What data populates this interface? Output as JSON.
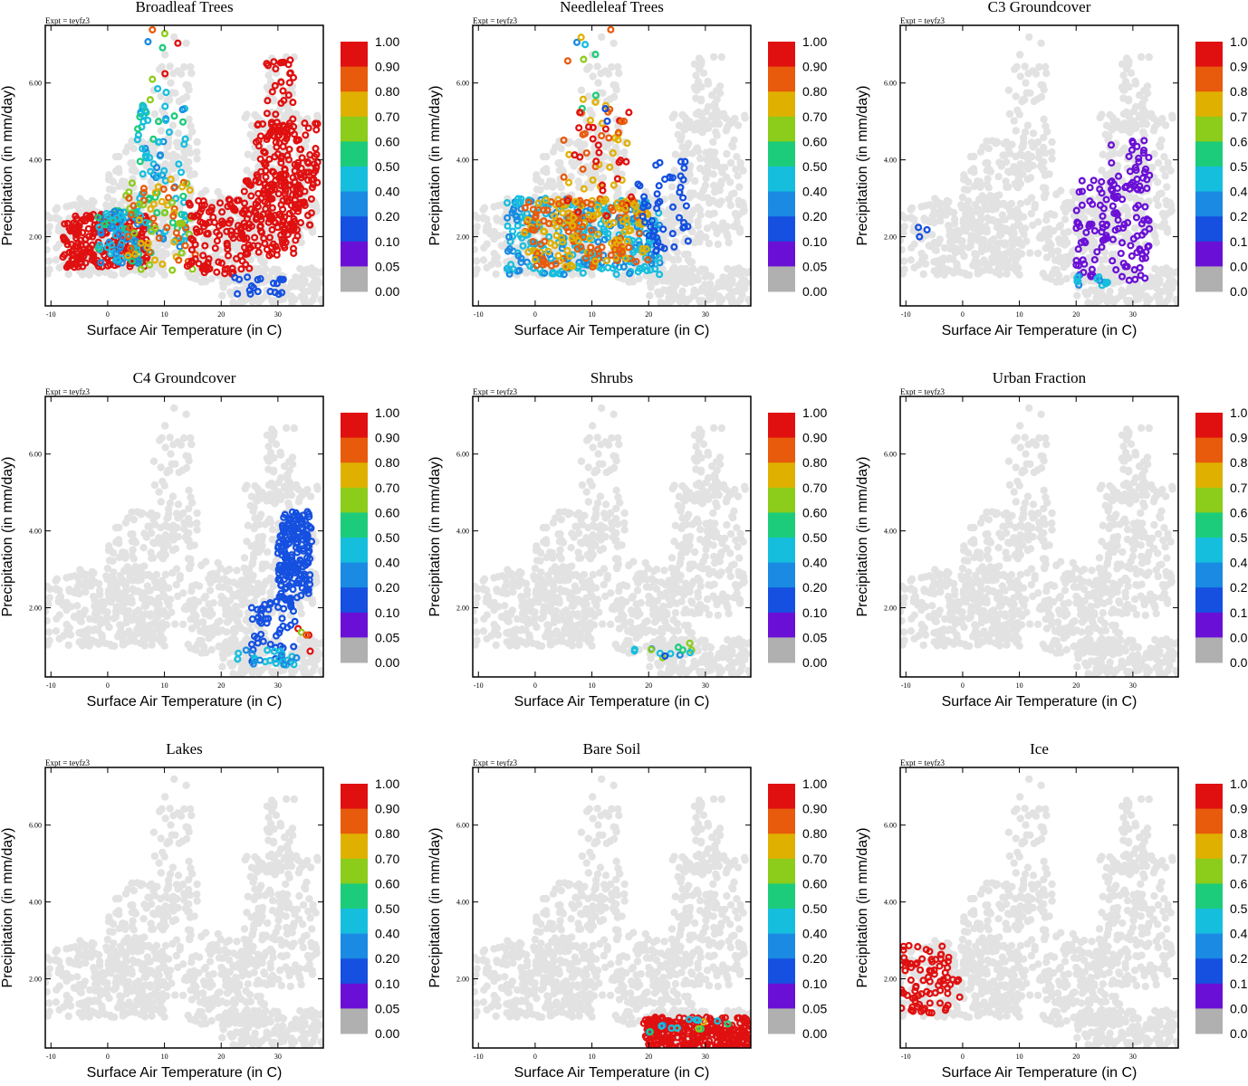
{
  "chart_data": {
    "type": "scatter",
    "experiment_label": "Expt = teyfz3",
    "xlabel": "Surface Air Temperature (in C)",
    "ylabel": "Precipitation (in mm/day)",
    "xlim": [
      -11,
      38
    ],
    "ylim": [
      0.2,
      7.5
    ],
    "x_ticks": [
      "-10",
      "0",
      "10",
      "20",
      "30"
    ],
    "x_tick_values": [
      -10,
      0,
      10,
      20,
      30
    ],
    "y_ticks": [
      "2.00",
      "4.00",
      "6.00"
    ],
    "y_tick_values": [
      2,
      4,
      6
    ],
    "colorbar_labels": [
      "1.00",
      "0.90",
      "0.80",
      "0.70",
      "0.60",
      "0.50",
      "0.40",
      "0.20",
      "0.10",
      "0.05",
      "0.00"
    ],
    "colorbar_colors": [
      "#e01010",
      "#e85a0c",
      "#e0b000",
      "#8ccc1a",
      "#1ccc7a",
      "#16bede",
      "#1a8ae2",
      "#1550e0",
      "#6a10d6",
      "#b0b0b0"
    ],
    "background_color": "#e2e2e2",
    "panels": [
      {
        "title": "Broadleaf Trees",
        "clusters": [
          {
            "x": [
              -8,
              7
            ],
            "y": [
              1.2,
              2.6
            ],
            "n": 220,
            "v": [
              0.8,
              0.9
            ]
          },
          {
            "x": [
              -2,
              6
            ],
            "y": [
              1.3,
              2.7
            ],
            "n": 80,
            "v": [
              0.1,
              0.5
            ]
          },
          {
            "x": [
              5,
              14
            ],
            "y": [
              1.5,
              5.5
            ],
            "n": 90,
            "v": [
              0.1,
              0.5
            ]
          },
          {
            "x": [
              3,
              16
            ],
            "y": [
              1.0,
              3.5
            ],
            "n": 70,
            "v": [
              0.5,
              0.8
            ]
          },
          {
            "x": [
              14,
              25
            ],
            "y": [
              1.0,
              3.0
            ],
            "n": 120,
            "v": [
              0.8,
              0.9
            ]
          },
          {
            "x": [
              24,
              34
            ],
            "y": [
              1.5,
              3.5
            ],
            "n": 100,
            "v": [
              0.8,
              0.9
            ]
          },
          {
            "x": [
              26,
              37
            ],
            "y": [
              2.2,
              5.0
            ],
            "n": 170,
            "v": [
              0.9,
              1.0
            ]
          },
          {
            "x": [
              28,
              33
            ],
            "y": [
              4.5,
              6.6
            ],
            "n": 40,
            "v": [
              0.9,
              1.0
            ]
          },
          {
            "x": [
              22,
              31
            ],
            "y": [
              0.5,
              1.0
            ],
            "n": 20,
            "v": [
              0.05,
              0.1
            ]
          },
          {
            "x": [
              7,
              14
            ],
            "y": [
              5.5,
              7.4
            ],
            "n": 10,
            "v": [
              0.05,
              0.9
            ]
          }
        ]
      },
      {
        "title": "Needleleaf Trees",
        "clusters": [
          {
            "x": [
              -5,
              22
            ],
            "y": [
              1.0,
              3.0
            ],
            "n": 300,
            "v": [
              0.1,
              0.4
            ]
          },
          {
            "x": [
              -2,
              20
            ],
            "y": [
              1.2,
              3.0
            ],
            "n": 200,
            "v": [
              0.6,
              0.8
            ]
          },
          {
            "x": [
              5,
              17
            ],
            "y": [
              2.5,
              5.5
            ],
            "n": 60,
            "v": [
              0.6,
              0.9
            ]
          },
          {
            "x": [
              18,
              27
            ],
            "y": [
              1.5,
              4.0
            ],
            "n": 50,
            "v": [
              0.05,
              0.1
            ]
          },
          {
            "x": [
              5,
              15
            ],
            "y": [
              5.0,
              7.4
            ],
            "n": 15,
            "v": [
              0.05,
              0.9
            ]
          }
        ]
      },
      {
        "title": "C3 Groundcover",
        "clusters": [
          {
            "x": [
              20,
              33
            ],
            "y": [
              0.8,
              3.5
            ],
            "n": 120,
            "v": [
              0.05,
              0.05
            ]
          },
          {
            "x": [
              26,
              33
            ],
            "y": [
              3.2,
              4.5
            ],
            "n": 30,
            "v": [
              0.05,
              0.05
            ]
          },
          {
            "x": [
              20,
              26
            ],
            "y": [
              0.6,
              1.0
            ],
            "n": 12,
            "v": [
              0.1,
              0.4
            ]
          },
          {
            "x": [
              -8,
              -6
            ],
            "y": [
              2.0,
              2.6
            ],
            "n": 3,
            "v": [
              0.05,
              0.1
            ]
          }
        ]
      },
      {
        "title": "C4 Groundcover",
        "clusters": [
          {
            "x": [
              30,
              36
            ],
            "y": [
              2.2,
              4.5
            ],
            "n": 180,
            "v": [
              0.05,
              0.1
            ]
          },
          {
            "x": [
              25,
              33
            ],
            "y": [
              0.6,
              2.2
            ],
            "n": 50,
            "v": [
              0.05,
              0.1
            ]
          },
          {
            "x": [
              22,
              34
            ],
            "y": [
              0.5,
              0.9
            ],
            "n": 25,
            "v": [
              0.1,
              0.4
            ]
          },
          {
            "x": [
              33,
              36
            ],
            "y": [
              0.8,
              1.5
            ],
            "n": 5,
            "v": [
              0.5,
              1.0
            ]
          }
        ]
      },
      {
        "title": "Shrubs",
        "clusters": [
          {
            "x": [
              17,
              28
            ],
            "y": [
              0.7,
              1.1
            ],
            "n": 14,
            "v": [
              0.05,
              0.6
            ]
          }
        ]
      },
      {
        "title": "Urban Fraction",
        "clusters": []
      },
      {
        "title": "Lakes",
        "clusters": []
      },
      {
        "title": "Bare Soil",
        "clusters": [
          {
            "x": [
              19,
              38
            ],
            "y": [
              0.2,
              1.0
            ],
            "n": 280,
            "v": [
              0.9,
              1.0
            ]
          },
          {
            "x": [
              20,
              34
            ],
            "y": [
              0.6,
              1.0
            ],
            "n": 15,
            "v": [
              0.1,
              0.7
            ]
          }
        ]
      },
      {
        "title": "Ice",
        "clusters": [
          {
            "x": [
              -11,
              -2
            ],
            "y": [
              1.1,
              2.9
            ],
            "n": 80,
            "v": [
              0.9,
              1.0
            ]
          },
          {
            "x": [
              -2,
              0
            ],
            "y": [
              1.5,
              2.0
            ],
            "n": 4,
            "v": [
              0.9,
              1.0
            ]
          }
        ]
      }
    ]
  }
}
